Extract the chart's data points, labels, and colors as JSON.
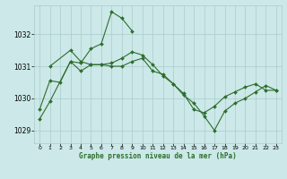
{
  "title": "Graphe pression niveau de la mer (hPa)",
  "bg_color": "#cce8e8",
  "grid_color": "#aacccc",
  "line_color": "#2d6e2d",
  "xlim": [
    -0.5,
    23.5
  ],
  "ylim": [
    1028.6,
    1032.9
  ],
  "yticks": [
    1029,
    1030,
    1031,
    1032
  ],
  "xticks": [
    0,
    1,
    2,
    3,
    4,
    5,
    6,
    7,
    8,
    9,
    10,
    11,
    12,
    13,
    14,
    15,
    16,
    17,
    18,
    19,
    20,
    21,
    22,
    23
  ],
  "series1_x": [
    0,
    1,
    3,
    4,
    5,
    6,
    7,
    8,
    9
  ],
  "series1_y": [
    1029.35,
    1029.9,
    1031.15,
    1031.1,
    1031.55,
    1031.7,
    1032.7,
    1032.5,
    1032.1
  ],
  "series2_x": [
    1,
    3,
    4,
    5,
    6,
    7,
    8,
    9,
    10,
    11,
    12,
    13,
    14,
    15,
    16,
    17,
    18,
    19,
    20,
    21,
    22,
    23
  ],
  "series2_y": [
    1031.0,
    1031.5,
    1031.15,
    1031.05,
    1031.05,
    1031.0,
    1031.0,
    1031.15,
    1031.25,
    1030.85,
    1030.75,
    1030.45,
    1030.15,
    1029.65,
    1029.55,
    1029.75,
    1030.05,
    1030.2,
    1030.35,
    1030.45,
    1030.25,
    1030.25
  ],
  "series3_x": [
    0,
    1,
    2,
    3,
    4,
    5,
    6,
    7,
    8,
    9,
    10,
    11,
    12,
    13,
    14,
    15,
    16,
    17,
    18,
    19,
    20,
    21,
    22,
    23
  ],
  "series3_y": [
    1029.65,
    1030.55,
    1030.5,
    1031.15,
    1030.85,
    1031.05,
    1031.05,
    1031.1,
    1031.25,
    1031.45,
    1031.35,
    1031.05,
    1030.7,
    1030.45,
    1030.1,
    1029.85,
    1029.45,
    1029.0,
    1029.6,
    1029.85,
    1030.0,
    1030.2,
    1030.4,
    1030.25
  ]
}
